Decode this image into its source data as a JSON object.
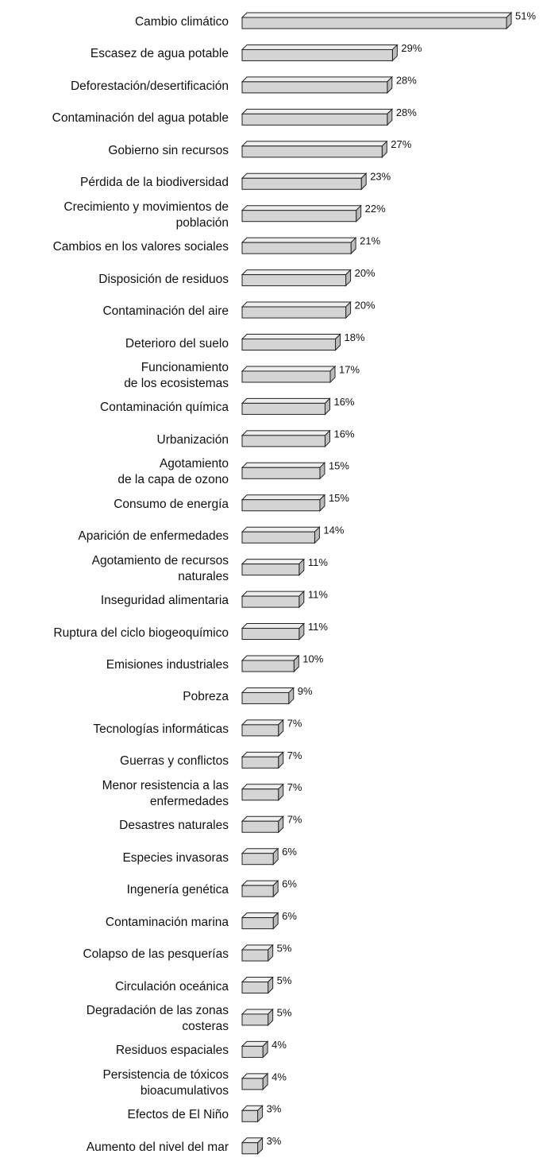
{
  "chart_data": {
    "type": "bar",
    "orientation": "horizontal",
    "color": "#d4d4d4",
    "categories": [
      "Cambio climático",
      "Escasez de agua potable",
      "Deforestación/desertificación",
      "Contaminación del agua potable",
      "Gobierno sin recursos",
      "Pérdida de la biodiversidad",
      "Crecimiento y movimientos de\npoblación",
      "Cambios en los valores sociales",
      "Disposición de residuos",
      "Contaminación del aire",
      "Deterioro del suelo",
      "Funcionamiento\nde los ecosistemas",
      "Contaminación química",
      "Urbanización",
      "Agotamiento\nde la capa de ozono",
      "Consumo de energía",
      "Aparición de enfermedades",
      "Agotamiento de recursos\nnaturales",
      "Inseguridad alimentaria",
      "Ruptura del ciclo biogeoquímico",
      "Emisiones industriales",
      "Pobreza",
      "Tecnologías informáticas",
      "Guerras y conflictos",
      "Menor resistencia a las\nenfermedades",
      "Desastres naturales",
      "Especies invasoras",
      "Ingenería genética",
      "Contaminación marina",
      "Colapso de las pesquerías",
      "Circulación oceánica",
      "Degradación de las zonas\ncosteras",
      "Residuos espaciales",
      "Persistencia de tóxicos\nbioacumulativos",
      "Efectos de El Niño",
      "Aumento del nivel del mar"
    ],
    "values": [
      51,
      29,
      28,
      28,
      27,
      23,
      22,
      21,
      20,
      20,
      18,
      17,
      16,
      16,
      15,
      15,
      14,
      11,
      11,
      11,
      10,
      9,
      7,
      7,
      7,
      7,
      6,
      6,
      6,
      5,
      5,
      5,
      4,
      4,
      3,
      3
    ],
    "value_labels": [
      "51%",
      "29%",
      "28%",
      "28%",
      "27%",
      "23%",
      "22%",
      "21%",
      "20%",
      "20%",
      "18%",
      "17%",
      "16%",
      "16%",
      "15%",
      "15%",
      "14%",
      "11%",
      "11%",
      "11%",
      "10%",
      "9%",
      "7%",
      "7%",
      "7%",
      "7%",
      "6%",
      "6%",
      "6%",
      "5%",
      "5%",
      "5%",
      "4%",
      "4%",
      "3%",
      "3%"
    ]
  }
}
